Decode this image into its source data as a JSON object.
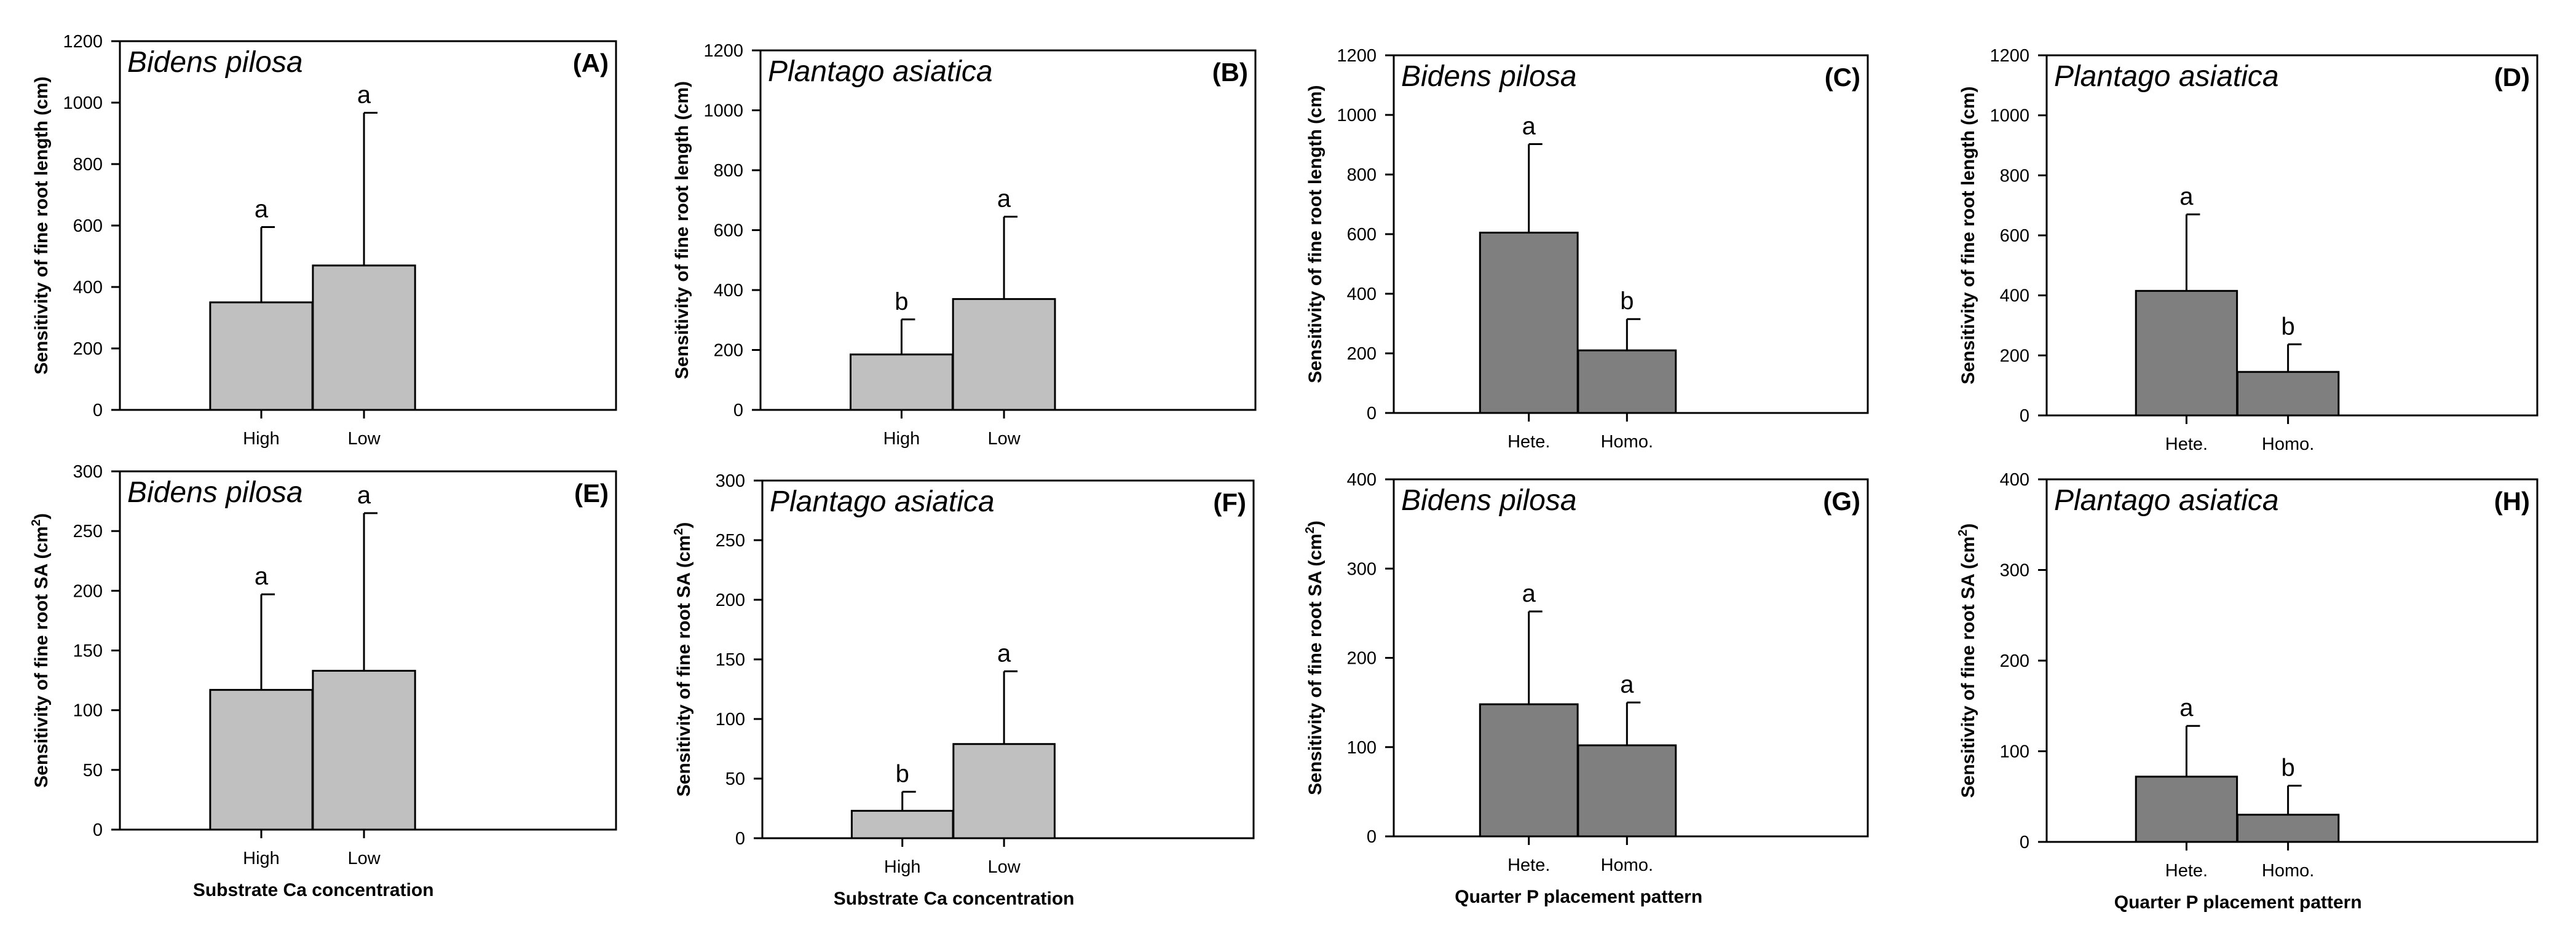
{
  "figure_label": "Fine root plasticity sensitivity panels",
  "colors": {
    "light_bar": "#c0c0c0",
    "dark_bar": "#7f7f7f",
    "axis": "#000000"
  },
  "chart_data": [
    {
      "panel": "(A)",
      "species": "Bidens pilosa",
      "type": "bar",
      "ylabel": "Sensitivity of fine root length (cm)",
      "ylim": [
        0,
        1200
      ],
      "yticks": [
        "0",
        "200",
        "400",
        "600",
        "800",
        "1000",
        "1200"
      ],
      "categories": [
        "High",
        "Low"
      ],
      "values": [
        350,
        470
      ],
      "errors": [
        245,
        497
      ],
      "letters": [
        "a",
        "a"
      ],
      "xlabel": "",
      "bar_color": "light"
    },
    {
      "panel": "(B)",
      "species": "Plantago asiatica",
      "type": "bar",
      "ylabel": "Sensitivity of fine root length (cm)",
      "ylim": [
        0,
        1200
      ],
      "yticks": [
        "0",
        "200",
        "400",
        "600",
        "800",
        "1000",
        "1200"
      ],
      "categories": [
        "High",
        "Low"
      ],
      "values": [
        185,
        370
      ],
      "errors": [
        117,
        275
      ],
      "letters": [
        "b",
        "a"
      ],
      "xlabel": "",
      "bar_color": "light"
    },
    {
      "panel": "(C)",
      "species": "Bidens pilosa",
      "type": "bar",
      "ylabel": "Sensitivity of fine root length (cm)",
      "ylim": [
        0,
        1200
      ],
      "yticks": [
        "0",
        "200",
        "400",
        "600",
        "800",
        "1000",
        "1200"
      ],
      "categories": [
        "Hete.",
        "Homo."
      ],
      "values": [
        605,
        210
      ],
      "errors": [
        297,
        105
      ],
      "letters": [
        "a",
        "b"
      ],
      "xlabel": "",
      "bar_color": "dark"
    },
    {
      "panel": "(D)",
      "species": "Plantago asiatica",
      "type": "bar",
      "ylabel": "Sensitivity of fine root length (cm)",
      "ylim": [
        0,
        1200
      ],
      "yticks": [
        "0",
        "200",
        "400",
        "600",
        "800",
        "1000",
        "1200"
      ],
      "categories": [
        "Hete.",
        "Homo."
      ],
      "values": [
        415,
        145
      ],
      "errors": [
        255,
        92
      ],
      "letters": [
        "a",
        "b"
      ],
      "xlabel": "",
      "bar_color": "dark"
    },
    {
      "panel": "(E)",
      "species": "Bidens pilosa",
      "type": "bar",
      "ylabel": "Sensitivity of fine root SA (cm2)",
      "ylim": [
        0,
        300
      ],
      "yticks": [
        "0",
        "50",
        "100",
        "150",
        "200",
        "250",
        "300"
      ],
      "categories": [
        "High",
        "Low"
      ],
      "values": [
        117,
        133
      ],
      "errors": [
        80,
        132
      ],
      "letters": [
        "a",
        "a"
      ],
      "xlabel": "Substrate Ca concentration",
      "bar_color": "light"
    },
    {
      "panel": "(F)",
      "species": "Plantago asiatica",
      "type": "bar",
      "ylabel": "Sensitivity of fine root SA (cm2)",
      "ylim": [
        0,
        300
      ],
      "yticks": [
        "0",
        "50",
        "100",
        "150",
        "200",
        "250",
        "300"
      ],
      "categories": [
        "High",
        "Low"
      ],
      "values": [
        23,
        79
      ],
      "errors": [
        16,
        61
      ],
      "letters": [
        "b",
        "a"
      ],
      "xlabel": "Substrate Ca concentration",
      "bar_color": "light"
    },
    {
      "panel": "(G)",
      "species": "Bidens pilosa",
      "type": "bar",
      "ylabel": "Sensitivity of fine root SA (cm2)",
      "ylim": [
        0,
        400
      ],
      "yticks": [
        "0",
        "100",
        "200",
        "300",
        "400"
      ],
      "categories": [
        "Hete.",
        "Homo."
      ],
      "values": [
        148,
        102
      ],
      "errors": [
        104,
        48
      ],
      "letters": [
        "a",
        "a"
      ],
      "xlabel": "Quarter P placement pattern",
      "bar_color": "dark"
    },
    {
      "panel": "(H)",
      "species": "Plantago asiatica",
      "type": "bar",
      "ylabel": "Sensitivity of fine root SA (cm2)",
      "ylim": [
        0,
        400
      ],
      "yticks": [
        "0",
        "100",
        "200",
        "300",
        "400"
      ],
      "categories": [
        "Hete.",
        "Homo."
      ],
      "values": [
        72,
        30
      ],
      "errors": [
        56,
        32
      ],
      "letters": [
        "a",
        "b"
      ],
      "xlabel": "Quarter P placement pattern",
      "bar_color": "dark"
    }
  ]
}
